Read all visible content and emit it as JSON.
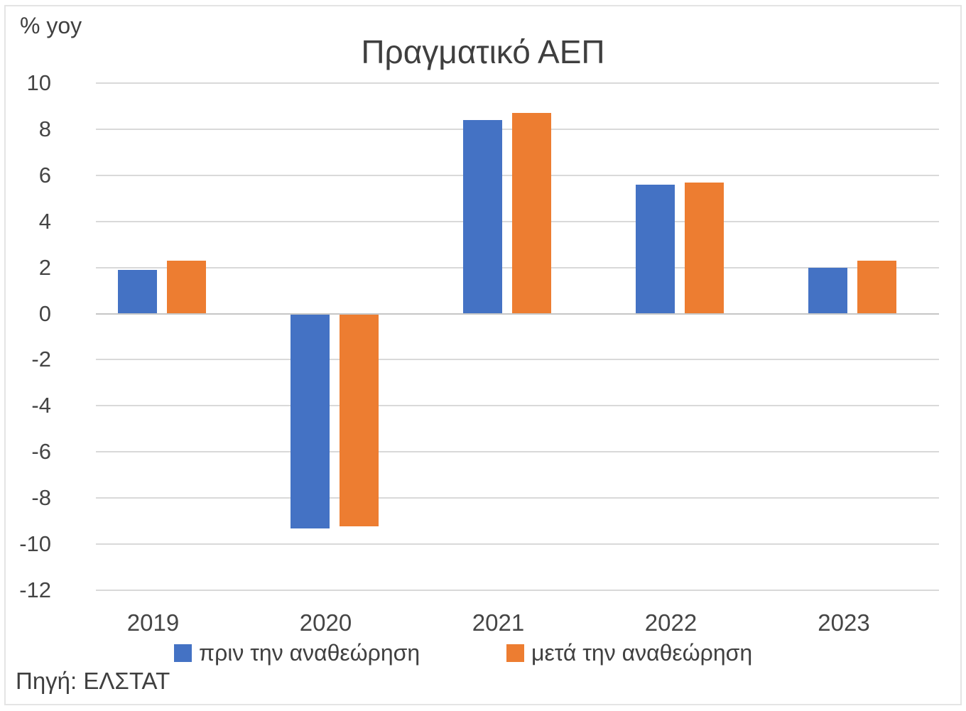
{
  "chart_data": {
    "type": "bar",
    "title": "Πραγματικό ΑΕΠ",
    "unit_label": "% yoy",
    "source": "Πηγή: ΕΛΣΤΑΤ",
    "categories": [
      "2019",
      "2020",
      "2021",
      "2022",
      "2023"
    ],
    "series": [
      {
        "name": "πριν την αναθεώρηση",
        "color": "#4472C4",
        "values": [
          1.9,
          -9.3,
          8.4,
          5.6,
          2.0
        ]
      },
      {
        "name": "μετά την αναθεώρηση",
        "color": "#ED7D31",
        "values": [
          2.3,
          -9.2,
          8.7,
          5.7,
          2.3
        ]
      }
    ],
    "ylim": [
      -12,
      10
    ],
    "ytick_step": 2,
    "yticks": [
      10,
      8,
      6,
      4,
      2,
      0,
      -2,
      -4,
      -6,
      -8,
      -10,
      -12
    ],
    "grid": true,
    "legend_position": "bottom",
    "gridline_color": "#d9d9d9",
    "zero_line_color": "#c6c6c6"
  }
}
